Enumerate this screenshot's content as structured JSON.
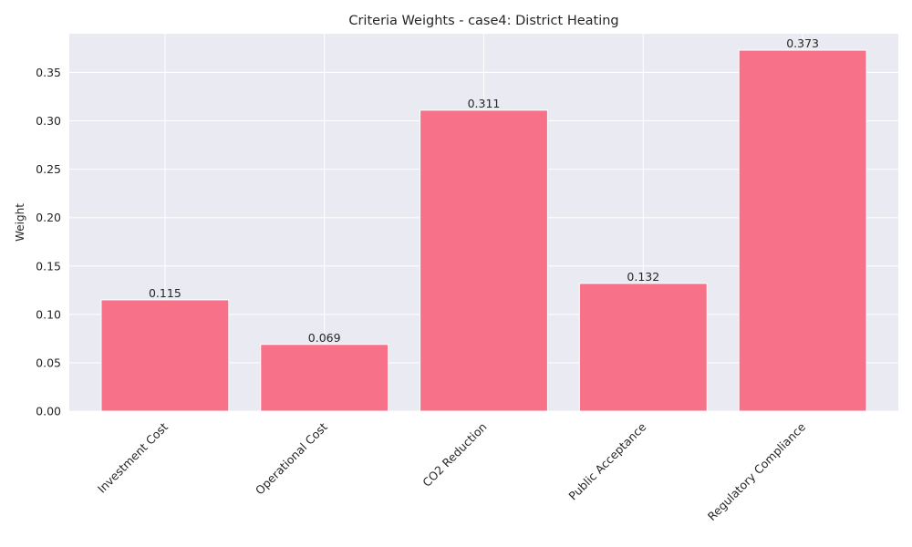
{
  "chart_data": {
    "type": "bar",
    "title": "Criteria Weights - case4: District Heating",
    "xlabel": "",
    "ylabel": "Weight",
    "categories": [
      "Investment Cost",
      "Operational Cost",
      "CO2 Reduction",
      "Public Acceptance",
      "Regulatory Compliance"
    ],
    "values": [
      0.115,
      0.069,
      0.311,
      0.132,
      0.373
    ],
    "value_labels": [
      "0.115",
      "0.069",
      "0.311",
      "0.132",
      "0.373"
    ],
    "ylim": [
      0,
      0.39
    ],
    "yticks": [
      0.0,
      0.05,
      0.1,
      0.15,
      0.2,
      0.25,
      0.3,
      0.35
    ],
    "ytick_labels": [
      "0.00",
      "0.05",
      "0.10",
      "0.15",
      "0.20",
      "0.25",
      "0.30",
      "0.35"
    ],
    "grid": true,
    "legend": "none",
    "colors": {
      "bar": "#f77189",
      "plot_background": "#eaeaf2",
      "grid": "#ffffff",
      "text": "#262626"
    }
  }
}
